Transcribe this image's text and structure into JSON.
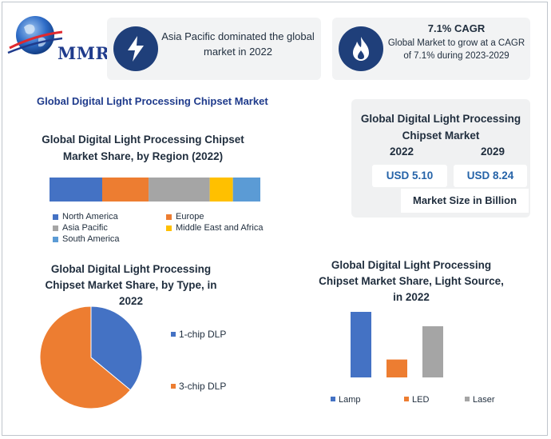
{
  "logo": {
    "text": "MMR"
  },
  "highlights": [
    {
      "icon": "lightning-icon",
      "text": "Asia Pacific dominated the global market in 2022"
    },
    {
      "icon": "flame-icon",
      "title": "7.1% CAGR",
      "text": "Global Market to grow at a CAGR of 7.1% during 2023-2029"
    }
  ],
  "main_title": "Global Digital Light Processing Chipset Market",
  "market_size": {
    "title": "Global Digital Light Processing Chipset Market",
    "year1": "2022",
    "year2": "2029",
    "value1": "USD 5.10",
    "value2": "USD 8.24",
    "caption": "Market Size in Billion"
  },
  "colors": {
    "blue": "#4472c4",
    "orange": "#ed7d31",
    "gray": "#a5a5a5",
    "yellow": "#ffc000",
    "lightblue": "#5b9bd5",
    "navy": "#1f3f7a"
  },
  "chart_data": [
    {
      "type": "bar",
      "subtype": "100% stacked horizontal",
      "title": "Global Digital Light Processing Chipset Market Share, by Region (2022)",
      "series": [
        {
          "name": "North America",
          "value": 25,
          "color": "#4472c4"
        },
        {
          "name": "Europe",
          "value": 22,
          "color": "#ed7d31"
        },
        {
          "name": "Asia Pacific",
          "value": 29,
          "color": "#a5a5a5"
        },
        {
          "name": "Middle East and Africa",
          "value": 11,
          "color": "#ffc000"
        },
        {
          "name": "South America",
          "value": 13,
          "color": "#5b9bd5"
        }
      ],
      "legend": "bottom"
    },
    {
      "type": "pie",
      "title": "Global Digital Light Processing Chipset Market Share, by Type, in 2022",
      "slices": [
        {
          "name": "1-chip DLP",
          "value": 36,
          "color": "#4472c4"
        },
        {
          "name": "3-chip DLP",
          "value": 64,
          "color": "#ed7d31"
        }
      ],
      "legend": "right"
    },
    {
      "type": "bar",
      "title": "Global Digital Light Processing Chipset Market Share, Light Source, in 2022",
      "categories": [
        "Lamp",
        "LED",
        "Laser"
      ],
      "values": [
        52,
        14,
        40
      ],
      "colors": [
        "#4472c4",
        "#ed7d31",
        "#a5a5a5"
      ],
      "ylim": [
        0,
        60
      ],
      "grid": false,
      "legend": "bottom"
    }
  ]
}
